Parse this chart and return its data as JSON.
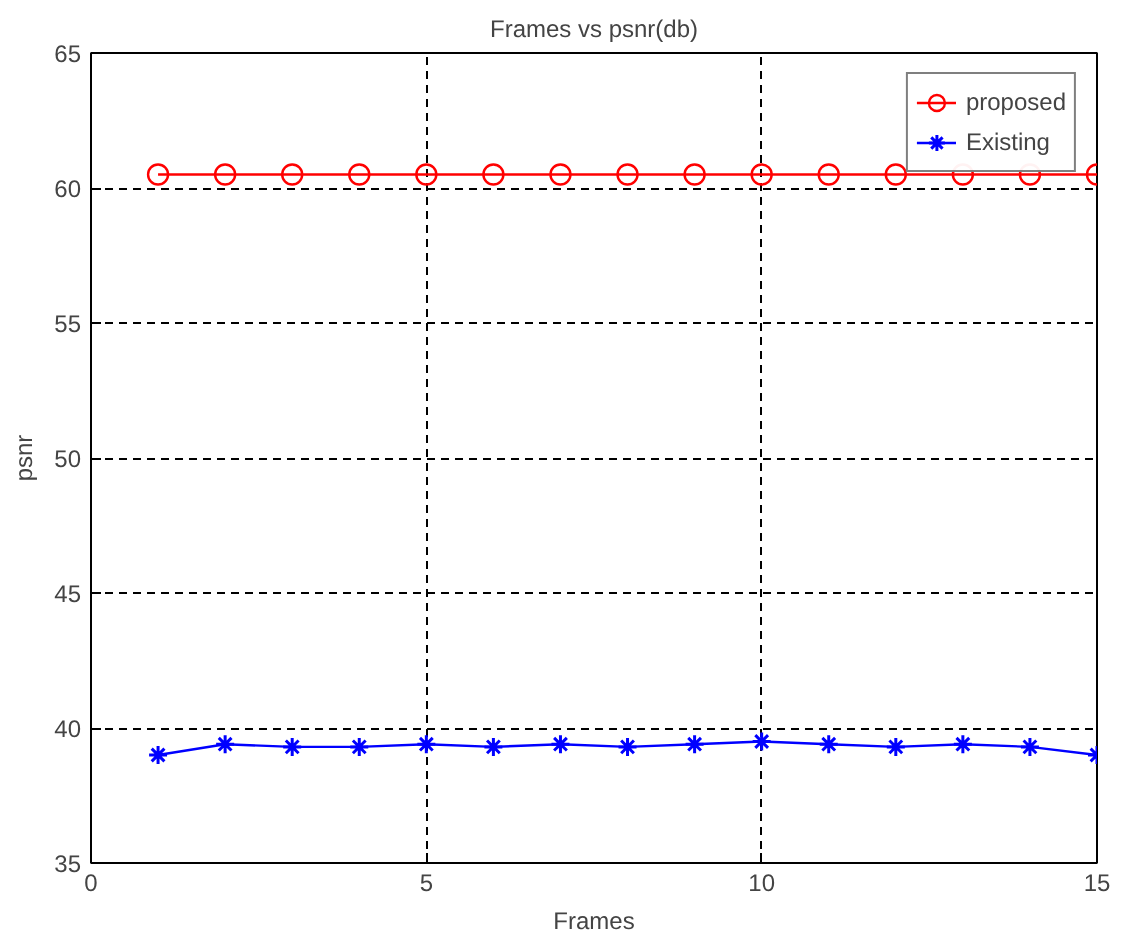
{
  "chart_data": {
    "type": "line",
    "title": "Frames vs psnr(db)",
    "xlabel": "Frames",
    "ylabel": "psnr",
    "x": [
      1,
      2,
      3,
      4,
      5,
      6,
      7,
      8,
      9,
      10,
      11,
      12,
      13,
      14,
      15
    ],
    "series": [
      {
        "name": "proposed",
        "color": "#ff0000",
        "marker": "circle",
        "values": [
          60.5,
          60.5,
          60.5,
          60.5,
          60.5,
          60.5,
          60.5,
          60.5,
          60.5,
          60.5,
          60.5,
          60.5,
          60.5,
          60.5,
          60.5
        ]
      },
      {
        "name": "Existing",
        "color": "#0000ff",
        "marker": "cross",
        "values": [
          39.0,
          39.4,
          39.3,
          39.3,
          39.4,
          39.3,
          39.4,
          39.3,
          39.4,
          39.5,
          39.4,
          39.3,
          39.4,
          39.3,
          39.0
        ]
      }
    ],
    "xlim": [
      0,
      15
    ],
    "xticks": [
      0,
      5,
      10,
      15
    ],
    "ylim": [
      35,
      65
    ],
    "yticks": [
      35,
      40,
      45,
      50,
      55,
      60,
      65
    ],
    "grid": true,
    "legend": "top right",
    "line_style": "solid"
  }
}
